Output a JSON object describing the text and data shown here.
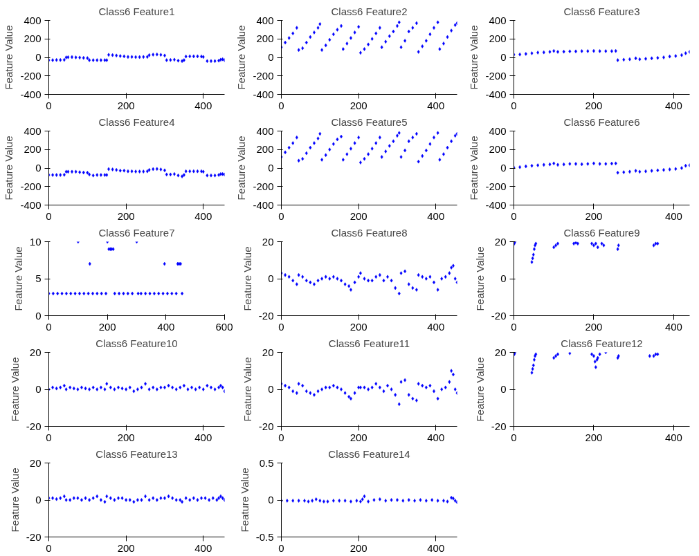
{
  "chart_data": [
    {
      "type": "scatter",
      "title": "Class6 Feature1",
      "ylabel": "Feature Value",
      "xlim": [
        0,
        455
      ],
      "xticks": [
        0,
        200,
        400
      ],
      "ylim": [
        -400,
        400
      ],
      "yticks": [
        -400,
        -200,
        0,
        200,
        400
      ],
      "marker": "diamond",
      "series": [
        {
          "color": "#0000ff",
          "x": [
            0,
            10,
            20,
            30,
            40,
            45,
            50,
            60,
            70,
            80,
            90,
            100,
            105,
            115,
            125,
            135,
            145,
            150,
            155,
            165,
            175,
            185,
            195,
            205,
            215,
            225,
            235,
            245,
            255,
            260,
            270,
            280,
            290,
            300,
            305,
            315,
            325,
            335,
            345,
            350,
            355,
            365,
            375,
            385,
            395,
            400,
            410,
            420,
            430,
            440,
            445,
            450,
            455
          ],
          "values": [
            -30,
            -30,
            -28,
            -28,
            -27,
            0,
            2,
            3,
            0,
            -2,
            -5,
            -8,
            -30,
            -30,
            -30,
            -30,
            -30,
            -30,
            28,
            25,
            20,
            15,
            12,
            5,
            5,
            3,
            3,
            5,
            6,
            25,
            30,
            32,
            28,
            20,
            -30,
            -28,
            -25,
            -35,
            -40,
            -30,
            10,
            12,
            12,
            12,
            10,
            5,
            -40,
            -40,
            -40,
            -35,
            -25,
            -20,
            -30
          ]
        }
      ]
    },
    {
      "type": "scatter",
      "title": "Class6 Feature2",
      "ylabel": "Feature Value",
      "xlim": [
        0,
        455
      ],
      "xticks": [
        0,
        200,
        400
      ],
      "ylim": [
        -400,
        400
      ],
      "yticks": [
        -400,
        -200,
        0,
        200,
        400
      ],
      "marker": "diamond",
      "series": [
        {
          "color": "#0000ff",
          "x": [
            0,
            10,
            20,
            30,
            40,
            45,
            55,
            65,
            75,
            85,
            95,
            100,
            105,
            115,
            125,
            135,
            145,
            155,
            160,
            170,
            180,
            190,
            200,
            205,
            215,
            225,
            235,
            245,
            255,
            260,
            270,
            280,
            290,
            300,
            305,
            310,
            320,
            330,
            340,
            350,
            355,
            365,
            375,
            385,
            395,
            405,
            410,
            420,
            430,
            440,
            450,
            455
          ],
          "values": [
            110,
            160,
            210,
            260,
            320,
            80,
            100,
            160,
            220,
            270,
            320,
            360,
            80,
            130,
            190,
            250,
            300,
            340,
            90,
            150,
            210,
            270,
            330,
            50,
            90,
            140,
            200,
            260,
            320,
            110,
            170,
            230,
            280,
            340,
            380,
            110,
            180,
            280,
            320,
            370,
            60,
            120,
            180,
            250,
            320,
            380,
            90,
            150,
            220,
            290,
            350,
            370
          ]
        }
      ]
    },
    {
      "type": "scatter",
      "title": "Class6 Feature3",
      "ylabel": "Feature Value",
      "xlim": [
        0,
        440
      ],
      "xticks": [
        0,
        200,
        400
      ],
      "ylim": [
        -400,
        400
      ],
      "yticks": [
        -400,
        -200,
        0,
        200,
        400
      ],
      "marker": "diamond",
      "series": [
        {
          "color": "#0000ff",
          "x": [
            0,
            15,
            30,
            45,
            60,
            75,
            90,
            100,
            110,
            125,
            140,
            155,
            170,
            185,
            200,
            215,
            230,
            245,
            255,
            260,
            275,
            290,
            305,
            315,
            330,
            345,
            360,
            375,
            390,
            405,
            420,
            430,
            440
          ],
          "values": [
            30,
            32,
            38,
            45,
            52,
            55,
            60,
            70,
            60,
            62,
            65,
            65,
            68,
            68,
            70,
            68,
            68,
            68,
            70,
            -30,
            -25,
            -20,
            -10,
            -20,
            -15,
            -10,
            -5,
            0,
            10,
            15,
            25,
            45,
            60
          ]
        }
      ]
    },
    {
      "type": "scatter",
      "title": "Class6 Feature4",
      "ylabel": "Feature Value",
      "xlim": [
        0,
        455
      ],
      "xticks": [
        0,
        200,
        400
      ],
      "ylim": [
        -400,
        400
      ],
      "yticks": [
        -400,
        -200,
        0,
        200,
        400
      ],
      "marker": "diamond",
      "series": [
        {
          "color": "#0000ff",
          "x": [
            0,
            10,
            20,
            30,
            40,
            45,
            50,
            60,
            70,
            80,
            90,
            100,
            105,
            115,
            125,
            135,
            145,
            150,
            155,
            165,
            175,
            185,
            195,
            205,
            215,
            225,
            235,
            245,
            255,
            260,
            270,
            280,
            290,
            300,
            305,
            315,
            325,
            335,
            345,
            350,
            355,
            365,
            375,
            385,
            395,
            400,
            410,
            420,
            430,
            440,
            445,
            450,
            455
          ],
          "values": [
            -75,
            -75,
            -75,
            -75,
            -73,
            -40,
            -40,
            -40,
            -40,
            -45,
            -48,
            -50,
            -70,
            -80,
            -75,
            -75,
            -75,
            -75,
            -12,
            -15,
            -20,
            -28,
            -28,
            -35,
            -35,
            -38,
            -38,
            -38,
            -35,
            -20,
            -12,
            -10,
            -15,
            -25,
            -70,
            -70,
            -65,
            -80,
            -90,
            -75,
            -35,
            -35,
            -35,
            -35,
            -35,
            -40,
            -80,
            -80,
            -80,
            -75,
            -65,
            -65,
            -70
          ]
        }
      ]
    },
    {
      "type": "scatter",
      "title": "Class6 Feature5",
      "ylabel": "Feature Value",
      "xlim": [
        0,
        455
      ],
      "xticks": [
        0,
        200,
        400
      ],
      "ylim": [
        -400,
        400
      ],
      "yticks": [
        -400,
        -200,
        0,
        200,
        400
      ],
      "marker": "diamond",
      "series": [
        {
          "color": "#0000ff",
          "x": [
            0,
            10,
            20,
            30,
            40,
            45,
            55,
            65,
            75,
            85,
            95,
            100,
            105,
            115,
            125,
            135,
            145,
            155,
            160,
            170,
            180,
            190,
            200,
            205,
            215,
            225,
            235,
            245,
            255,
            260,
            270,
            280,
            290,
            300,
            305,
            310,
            320,
            330,
            340,
            350,
            355,
            365,
            375,
            385,
            395,
            405,
            410,
            420,
            430,
            440,
            450,
            455
          ],
          "values": [
            120,
            170,
            220,
            270,
            330,
            80,
            100,
            160,
            220,
            270,
            320,
            370,
            90,
            140,
            200,
            260,
            310,
            340,
            90,
            150,
            210,
            270,
            330,
            60,
            100,
            150,
            210,
            270,
            330,
            120,
            180,
            240,
            290,
            350,
            380,
            120,
            190,
            290,
            330,
            370,
            70,
            130,
            190,
            260,
            330,
            380,
            90,
            150,
            220,
            290,
            350,
            370
          ]
        }
      ]
    },
    {
      "type": "scatter",
      "title": "Class6 Feature6",
      "ylabel": "Feature Value",
      "xlim": [
        0,
        440
      ],
      "xticks": [
        0,
        200,
        400
      ],
      "ylim": [
        -400,
        400
      ],
      "yticks": [
        -400,
        -200,
        0,
        200,
        400
      ],
      "marker": "diamond",
      "series": [
        {
          "color": "#0000ff",
          "x": [
            0,
            15,
            30,
            45,
            60,
            75,
            90,
            100,
            110,
            125,
            140,
            155,
            170,
            185,
            200,
            215,
            230,
            245,
            255,
            260,
            275,
            290,
            305,
            315,
            330,
            345,
            360,
            375,
            390,
            405,
            420,
            430,
            440
          ],
          "values": [
            5,
            10,
            18,
            25,
            30,
            35,
            40,
            50,
            35,
            40,
            45,
            45,
            42,
            45,
            50,
            45,
            45,
            48,
            50,
            -50,
            -45,
            -40,
            -30,
            -40,
            -35,
            -30,
            -25,
            -20,
            -15,
            -10,
            0,
            25,
            30
          ]
        }
      ]
    },
    {
      "type": "scatter",
      "title": "Class6 Feature7",
      "ylabel": "Feature Value",
      "xlim": [
        0,
        600
      ],
      "xticks": [
        0,
        200,
        400,
        600
      ],
      "ylim": [
        0,
        10
      ],
      "yticks": [
        0,
        5,
        10
      ],
      "marker": "diamond",
      "series": [
        {
          "color": "#0000ff",
          "x": [
            0,
            15,
            30,
            45,
            60,
            75,
            90,
            100,
            105,
            120,
            135,
            140,
            150,
            165,
            180,
            195,
            200,
            205,
            210,
            215,
            220,
            225,
            240,
            255,
            270,
            285,
            300,
            305,
            315,
            330,
            345,
            360,
            375,
            390,
            395,
            405,
            420,
            435,
            440,
            445,
            450,
            455
          ],
          "values": [
            3,
            3,
            3,
            3,
            3,
            3,
            3,
            10,
            3,
            3,
            3,
            7,
            3,
            3,
            3,
            3,
            10,
            9,
            9,
            9,
            9,
            3,
            3,
            3,
            3,
            3,
            10,
            3,
            3,
            3,
            3,
            3,
            3,
            3,
            7,
            3,
            3,
            3,
            7,
            7,
            7,
            3
          ]
        }
      ]
    },
    {
      "type": "scatter",
      "title": "Class6 Feature8",
      "ylabel": "Feature Value",
      "xlim": [
        0,
        455
      ],
      "xticks": [
        0,
        200,
        400
      ],
      "ylim": [
        -20,
        20
      ],
      "yticks": [
        -20,
        0,
        20
      ],
      "marker": "diamond",
      "series": [
        {
          "color": "#0000ff",
          "x": [
            0,
            10,
            20,
            30,
            40,
            45,
            55,
            65,
            75,
            85,
            95,
            105,
            115,
            125,
            135,
            145,
            155,
            165,
            175,
            180,
            190,
            200,
            205,
            215,
            225,
            235,
            245,
            255,
            265,
            275,
            285,
            295,
            305,
            310,
            320,
            330,
            340,
            350,
            355,
            365,
            375,
            385,
            395,
            405,
            415,
            425,
            435,
            440,
            445,
            450,
            455
          ],
          "values": [
            3,
            2,
            1,
            -1,
            -3,
            2,
            1,
            -1,
            -2,
            -3,
            -1,
            0,
            1,
            0,
            1,
            0,
            -1,
            -3,
            -4,
            -6,
            -2,
            1,
            3,
            0,
            -1,
            -1,
            1,
            2,
            -1,
            1,
            -1,
            -5,
            -8,
            3,
            4,
            -3,
            -5,
            -6,
            2,
            1,
            0,
            1,
            -2,
            -6,
            0,
            1,
            3,
            6,
            7,
            0,
            -2
          ]
        }
      ]
    },
    {
      "type": "scatter",
      "title": "Class6 Feature9",
      "ylabel": "Feature Value",
      "xlim": [
        0,
        440
      ],
      "xticks": [
        0,
        200,
        400
      ],
      "ylim": [
        -20,
        20
      ],
      "yticks": [
        -20,
        0,
        20
      ],
      "marker": "diamond",
      "series": [
        {
          "color": "#0000ff",
          "x": [
            1,
            3,
            45,
            47,
            49,
            51,
            53,
            55,
            100,
            105,
            110,
            150,
            155,
            160,
            195,
            200,
            205,
            210,
            220,
            225,
            260,
            262,
            350,
            355,
            360
          ],
          "values": [
            19,
            20,
            9,
            11,
            13,
            16,
            18,
            19,
            17,
            18,
            19,
            19,
            19.5,
            19,
            19,
            18,
            19,
            17,
            19,
            18,
            16,
            18,
            18,
            19,
            19
          ]
        }
      ]
    },
    {
      "type": "scatter",
      "title": "Class6 Feature10",
      "ylabel": "Feature Value",
      "xlim": [
        0,
        455
      ],
      "xticks": [
        0,
        200,
        400
      ],
      "ylim": [
        -20,
        20
      ],
      "yticks": [
        -20,
        0,
        20
      ],
      "marker": "diamond",
      "series": [
        {
          "color": "#0000ff",
          "x": [
            0,
            10,
            20,
            30,
            40,
            45,
            55,
            65,
            75,
            85,
            95,
            105,
            115,
            125,
            135,
            145,
            150,
            160,
            170,
            180,
            190,
            200,
            210,
            220,
            230,
            240,
            250,
            260,
            270,
            280,
            290,
            300,
            310,
            320,
            330,
            340,
            350,
            360,
            370,
            380,
            390,
            400,
            410,
            420,
            430,
            440,
            445,
            450,
            455
          ],
          "values": [
            0,
            1,
            0.5,
            1,
            2,
            0,
            1,
            0.5,
            0,
            1,
            0.5,
            0,
            1,
            0,
            1,
            0,
            3,
            1,
            0,
            1,
            0.5,
            0,
            1,
            -1,
            0,
            1,
            3,
            0,
            1,
            0,
            1,
            1,
            2,
            1,
            0,
            1,
            2,
            0,
            1,
            0,
            1,
            0,
            2,
            1,
            0,
            1,
            2,
            1,
            -1
          ]
        }
      ]
    },
    {
      "type": "scatter",
      "title": "Class6 Feature11",
      "ylabel": "Feature Value",
      "xlim": [
        0,
        455
      ],
      "xticks": [
        0,
        200,
        400
      ],
      "ylim": [
        -20,
        20
      ],
      "yticks": [
        -20,
        0,
        20
      ],
      "marker": "diamond",
      "series": [
        {
          "color": "#0000ff",
          "x": [
            0,
            10,
            20,
            30,
            40,
            45,
            55,
            65,
            75,
            85,
            95,
            105,
            115,
            125,
            135,
            145,
            155,
            165,
            175,
            180,
            190,
            200,
            205,
            215,
            225,
            235,
            245,
            255,
            265,
            275,
            285,
            295,
            305,
            310,
            320,
            330,
            340,
            350,
            355,
            365,
            375,
            385,
            395,
            405,
            415,
            425,
            435,
            440,
            445,
            450,
            455
          ],
          "values": [
            3,
            2,
            1,
            -1,
            -2,
            3,
            2,
            -1,
            -2,
            -3,
            -1,
            0,
            1,
            1,
            2,
            1,
            0,
            -2,
            -4,
            -5,
            -2,
            1,
            1,
            1,
            0,
            1,
            3,
            1,
            -1,
            2,
            0,
            -3,
            -8,
            4,
            5,
            -3,
            -5,
            -6,
            3,
            2,
            1,
            2,
            -1,
            -5,
            0,
            1,
            4,
            10,
            8,
            0,
            -2
          ]
        }
      ]
    },
    {
      "type": "scatter",
      "title": "Class6 Feature12",
      "ylabel": "Feature Value",
      "xlim": [
        0,
        440
      ],
      "xticks": [
        0,
        200,
        400
      ],
      "ylim": [
        -20,
        20
      ],
      "yticks": [
        -20,
        0,
        20
      ],
      "marker": "diamond",
      "series": [
        {
          "color": "#0000ff",
          "x": [
            1,
            3,
            45,
            47,
            49,
            51,
            53,
            55,
            100,
            105,
            110,
            140,
            195,
            200,
            203,
            205,
            208,
            210,
            215,
            230,
            260,
            262,
            340,
            350,
            355,
            360
          ],
          "values": [
            19,
            20,
            9,
            11,
            13,
            16,
            18,
            19,
            17,
            18,
            19,
            19.5,
            19,
            18,
            15,
            12,
            16,
            17,
            19,
            20,
            17,
            18,
            18,
            18,
            19,
            19
          ]
        }
      ]
    },
    {
      "type": "scatter",
      "title": "Class6 Feature13",
      "ylabel": "Feature Value",
      "xlim": [
        0,
        455
      ],
      "xticks": [
        0,
        200,
        400
      ],
      "ylim": [
        -20,
        20
      ],
      "yticks": [
        -20,
        0,
        20
      ],
      "marker": "diamond",
      "series": [
        {
          "color": "#0000ff",
          "x": [
            0,
            10,
            20,
            30,
            40,
            45,
            55,
            65,
            75,
            85,
            95,
            105,
            115,
            125,
            135,
            145,
            150,
            160,
            170,
            180,
            190,
            200,
            210,
            220,
            230,
            240,
            250,
            260,
            270,
            280,
            290,
            300,
            310,
            320,
            330,
            340,
            345,
            355,
            365,
            375,
            385,
            395,
            405,
            415,
            425,
            435,
            440,
            445,
            450,
            455
          ],
          "values": [
            1,
            1,
            0.5,
            1,
            2,
            0,
            0,
            1,
            1,
            0,
            1,
            0,
            1,
            2,
            0,
            -1,
            2,
            1,
            0,
            1,
            1,
            0,
            0,
            -1,
            0,
            0,
            2,
            0,
            1,
            0,
            1,
            1,
            2,
            1,
            0,
            0,
            -1,
            1,
            0,
            1,
            0,
            1,
            1,
            0,
            1,
            0,
            1,
            2,
            1,
            0
          ]
        }
      ]
    },
    {
      "type": "scatter",
      "title": "Class6 Feature14",
      "ylabel": "Feature Value",
      "xlim": [
        0,
        455
      ],
      "xticks": [
        0,
        200,
        400
      ],
      "ylim": [
        -0.5,
        0.5
      ],
      "yticks": [
        -0.5,
        0,
        0.5
      ],
      "marker": "diamond",
      "series": [
        {
          "color": "#0000ff",
          "x": [
            0,
            15,
            30,
            45,
            60,
            70,
            80,
            90,
            100,
            110,
            120,
            135,
            150,
            165,
            180,
            195,
            205,
            210,
            215,
            225,
            240,
            255,
            270,
            285,
            300,
            315,
            330,
            345,
            360,
            375,
            390,
            405,
            420,
            430,
            440,
            445,
            450,
            455
          ],
          "values": [
            -0.01,
            -0.01,
            -0.01,
            -0.01,
            -0.01,
            -0.02,
            -0.01,
            0.01,
            -0.01,
            -0.02,
            -0.02,
            -0.01,
            -0.01,
            -0.01,
            -0.02,
            -0.01,
            -0.02,
            0.01,
            0.05,
            -0.02,
            0,
            0.01,
            -0.01,
            0,
            0,
            -0.01,
            0,
            -0.01,
            0,
            -0.01,
            0,
            -0.01,
            -0.01,
            -0.02,
            0.03,
            0.02,
            -0.01,
            -0.03
          ]
        }
      ]
    }
  ]
}
